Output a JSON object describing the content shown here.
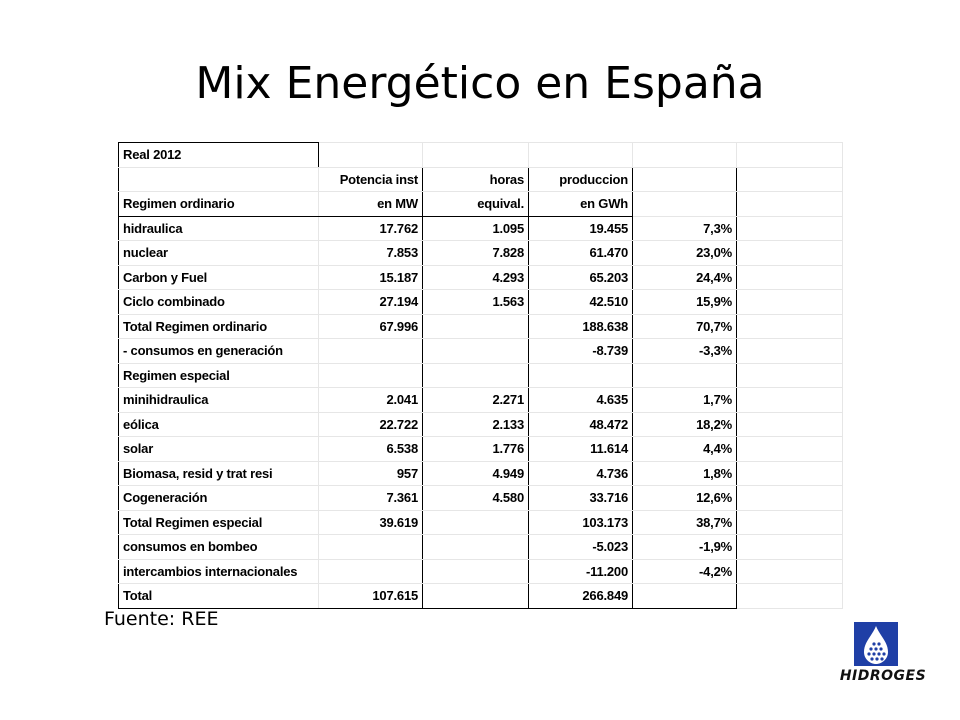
{
  "slide": {
    "title": "Mix Energético en España",
    "source": "Fuente: REE",
    "logo_text": "HIDROGES"
  },
  "table": {
    "caption": "Real 2012",
    "header_top": [
      "Potencia inst",
      "horas",
      "produccion"
    ],
    "header_bottom": [
      "Regimen ordinario",
      "en MW",
      "equival.",
      "en GWh"
    ],
    "rows": [
      [
        "hidraulica",
        "17.762",
        "1.095",
        "19.455",
        "7,3%"
      ],
      [
        "nuclear",
        "7.853",
        "7.828",
        "61.470",
        "23,0%"
      ],
      [
        "Carbon y Fuel",
        "15.187",
        "4.293",
        "65.203",
        "24,4%"
      ],
      [
        "Ciclo combinado",
        "27.194",
        "1.563",
        "42.510",
        "15,9%"
      ],
      [
        "Total Regimen ordinario",
        "67.996",
        "",
        "188.638",
        "70,7%"
      ],
      [
        " - consumos en generación",
        "",
        "",
        "-8.739",
        "-3,3%"
      ],
      [
        "Regimen especial",
        "",
        "",
        "",
        ""
      ],
      [
        "minihidraulica",
        "2.041",
        "2.271",
        "4.635",
        "1,7%"
      ],
      [
        "eólica",
        "22.722",
        "2.133",
        "48.472",
        "18,2%"
      ],
      [
        "solar",
        "6.538",
        "1.776",
        "11.614",
        "4,4%"
      ],
      [
        "Biomasa, resid y trat resi",
        "957",
        "4.949",
        "4.736",
        "1,8%"
      ],
      [
        "Cogeneración",
        "7.361",
        "4.580",
        "33.716",
        "12,6%"
      ],
      [
        "Total Regimen especial",
        "39.619",
        "",
        "103.173",
        "38,7%"
      ],
      [
        "consumos en bombeo",
        "",
        "",
        "-5.023",
        "-1,9%"
      ],
      [
        "intercambios internacionales",
        "",
        "",
        "-11.200",
        "-4,2%"
      ],
      [
        "Total",
        "107.615",
        "",
        "266.849",
        ""
      ]
    ]
  },
  "colors": {
    "logo_blue": "#1f3fa6",
    "text": "#000000"
  }
}
